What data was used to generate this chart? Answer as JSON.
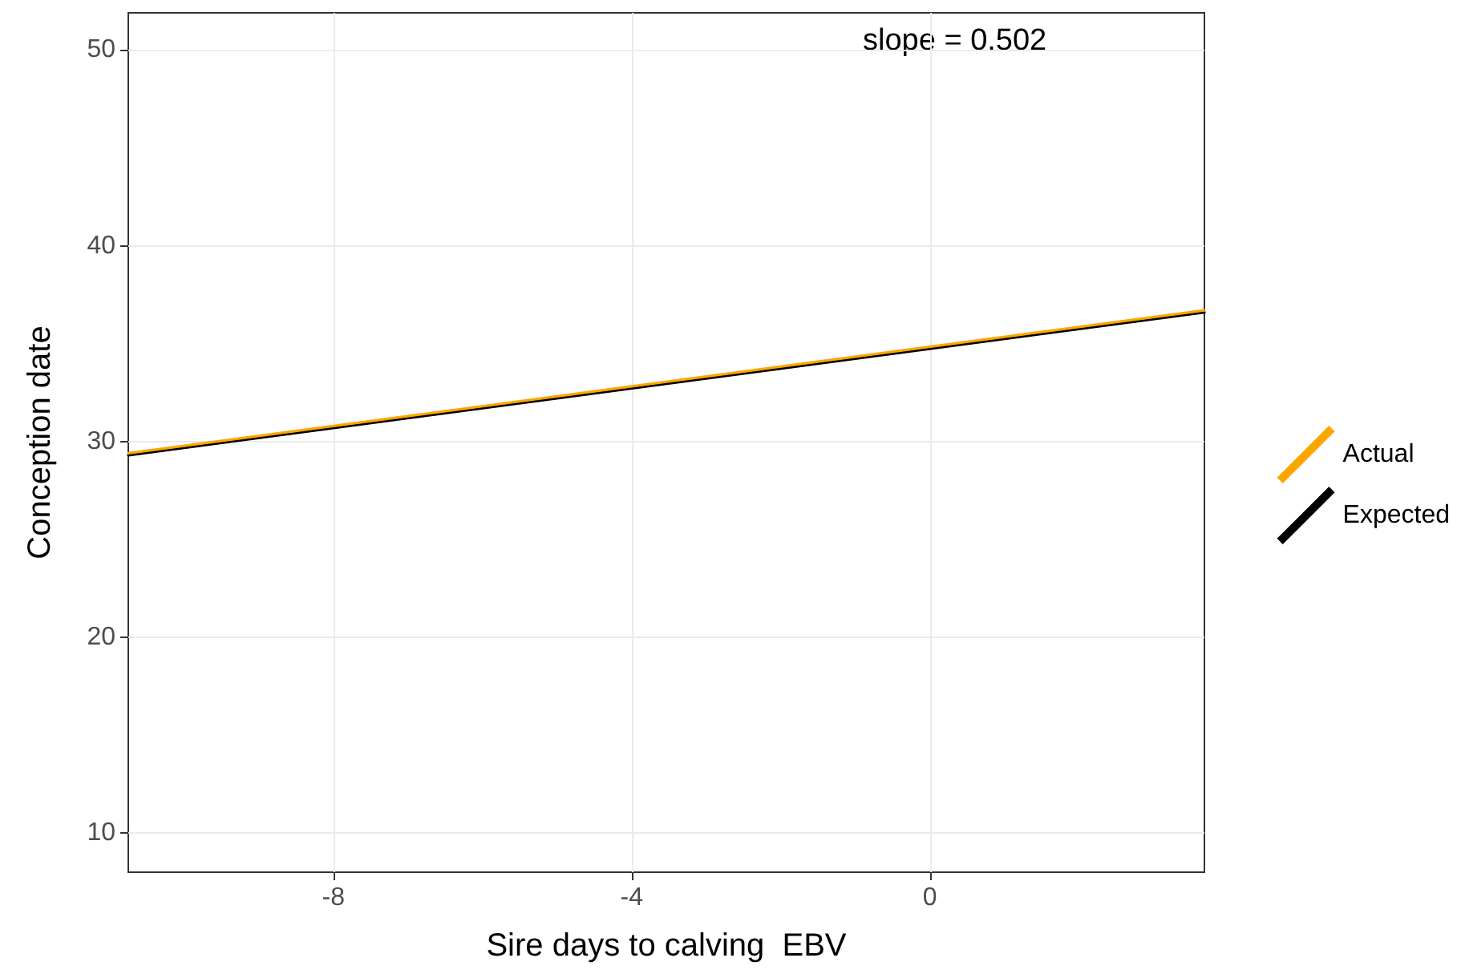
{
  "chart_data": {
    "type": "line",
    "xlabel": "Sire days to calving  EBV",
    "ylabel": "Conception date",
    "annotations": [
      "slope = 0.502"
    ],
    "series": [
      {
        "name": "Actual",
        "color": "#ffa500",
        "values": [
          29.4,
          36.7
        ]
      },
      {
        "name": "Expected",
        "color": "#000000",
        "values": [
          29.3,
          36.6
        ]
      }
    ],
    "x": [
      -10.75,
      3.68
    ],
    "xlim": [
      -10.75,
      3.68
    ],
    "xticks": [
      -8,
      -4,
      0
    ],
    "ylim": [
      8.0,
      51.9
    ],
    "yticks": [
      10,
      20,
      30,
      40,
      50
    ],
    "grid": true,
    "legend": "right",
    "marker": "none",
    "line_style": "solid"
  }
}
